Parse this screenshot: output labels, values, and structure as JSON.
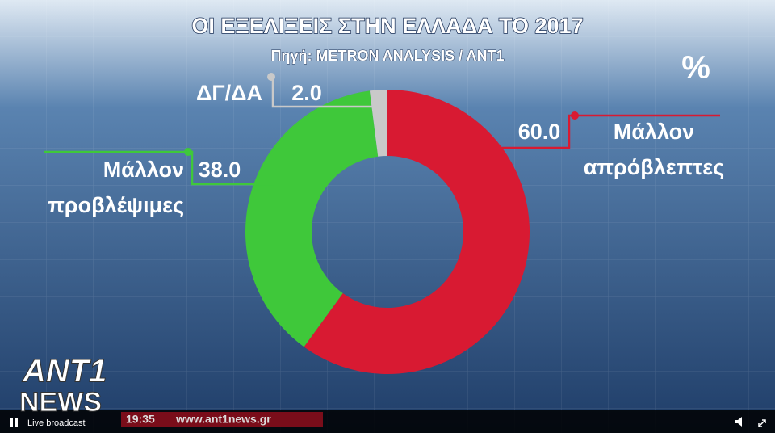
{
  "chart_data": {
    "type": "pie",
    "donut": true,
    "title": "ΟΙ ΕΞΕΛΙΞΕΙΣ ΣΤΗΝ ΕΛΛΑΔΑ ΤΟ 2017",
    "subtitle": "Πηγή: METRON ANALYSIS / ANT1",
    "unit_label": "%",
    "categories": [
      "Μάλλον απρόβλεπτες",
      "Μάλλον προβλέψιμες",
      "ΔΓ/ΔΑ"
    ],
    "values": [
      60,
      38,
      2
    ],
    "value_labels": [
      "60.0",
      "38.0",
      "2.0"
    ],
    "colors": [
      "#d81a32",
      "#3fc83a",
      "#c9c9c9"
    ]
  },
  "overlay": {
    "logo_top": "ANT1",
    "logo_bottom": "NEWS",
    "ticker_time": "19:35",
    "ticker_url": "www.ant1news.gr",
    "player_status": "Live broadcast"
  }
}
